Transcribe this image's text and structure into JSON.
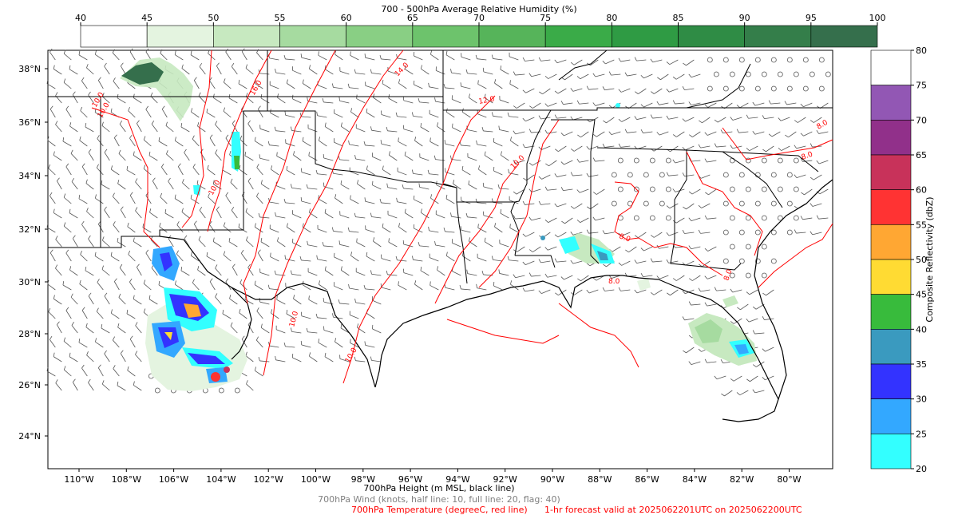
{
  "top_colorbar": {
    "title": "700 - 500hPa Average Relative Humidity (%)",
    "ticks": [
      "40",
      "45",
      "50",
      "55",
      "60",
      "65",
      "70",
      "75",
      "80",
      "85",
      "90",
      "95",
      "100"
    ],
    "colors": [
      "#ffffff",
      "#e4f4e0",
      "#c7e9c0",
      "#a6dba0",
      "#89cf84",
      "#6dc36c",
      "#56b45a",
      "#3aab48",
      "#2f9b44",
      "#2f8c45",
      "#347e4a",
      "#356f4c"
    ]
  },
  "right_colorbar": {
    "label": "Composite Reflectivity (dbZ)",
    "ticks": [
      "80",
      "75",
      "70",
      "65",
      "60",
      "55",
      "50",
      "45",
      "40",
      "35",
      "30",
      "25",
      "20"
    ],
    "colors": [
      "#ffffff",
      "#9257b4",
      "#91308a",
      "#c8325a",
      "#ff3333",
      "#ffa733",
      "#ffdb33",
      "#38bb3c",
      "#3a9abf",
      "#3333ff",
      "#33a8ff",
      "#33ffff"
    ]
  },
  "map": {
    "lat_labels": [
      "38°N",
      "36°N",
      "34°N",
      "32°N",
      "30°N",
      "28°N",
      "26°N",
      "24°N"
    ],
    "lon_labels": [
      "110°W",
      "108°W",
      "106°W",
      "104°W",
      "102°W",
      "100°W",
      "98°W",
      "96°W",
      "94°W",
      "92°W",
      "90°W",
      "88°W",
      "86°W",
      "84°W",
      "82°W",
      "80°W"
    ],
    "contour_labels": [
      "10.0",
      "16.0",
      "14.0",
      "12.0",
      "10.0",
      "10.0",
      "8.0",
      "8.0",
      "8.0",
      "8.0",
      "8.0",
      "10.0",
      "10.0",
      "10.0"
    ],
    "temp_color": "#ff0000",
    "wind_color": "#555555"
  },
  "footer": {
    "height_label": "700hPa Height (m MSL, black line)",
    "wind_label": "700hPa Wind (knots, half line: 10, full line: 20, flag: 40)",
    "temp_label": "700hPa Temperature (degreeC, red line)",
    "valid_label": "1-hr forecast valid at 2025062201UTC on 2025062200UTC"
  }
}
